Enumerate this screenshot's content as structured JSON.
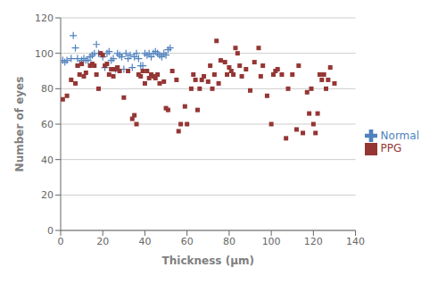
{
  "chart_data": {
    "type": "scatter",
    "xlabel": "Thickness (μm)",
    "ylabel": "Number of eyes",
    "xlim": [
      0,
      140
    ],
    "ylim": [
      0,
      120
    ],
    "xticks": [
      0,
      20,
      40,
      60,
      80,
      100,
      120,
      140
    ],
    "yticks": [
      0,
      20,
      40,
      60,
      80,
      100,
      120
    ],
    "grid": "y",
    "legend": "right",
    "series": [
      {
        "name": "Normal",
        "color": "#4F81BD",
        "marker": "plus",
        "x": [
          1,
          2,
          3,
          5,
          6,
          7,
          8,
          9,
          10,
          11,
          12,
          13,
          14,
          15,
          16,
          17,
          18,
          20,
          21,
          22,
          23,
          24,
          25,
          26,
          27,
          28,
          29,
          30,
          31,
          32,
          33,
          34,
          35,
          36,
          37,
          38,
          39,
          40,
          41,
          42,
          43,
          44,
          45,
          46,
          47,
          48,
          49,
          50,
          51,
          52
        ],
        "values": [
          96,
          95,
          96,
          97,
          110,
          103,
          97,
          94,
          96,
          97,
          96,
          96,
          98,
          99,
          100,
          105,
          100,
          98,
          92,
          100,
          101,
          96,
          97,
          91,
          100,
          99,
          98,
          91,
          100,
          97,
          99,
          92,
          98,
          100,
          97,
          93,
          93,
          100,
          99,
          100,
          98,
          100,
          101,
          100,
          99,
          98,
          100,
          99,
          102,
          103
        ]
      },
      {
        "name": "PPG",
        "color": "#943634",
        "marker": "square",
        "x": [
          1,
          3,
          5,
          7,
          8,
          9,
          10,
          11,
          12,
          14,
          15,
          16,
          17,
          18,
          19,
          20,
          21,
          22,
          23,
          24,
          25,
          26,
          27,
          28,
          30,
          32,
          34,
          35,
          36,
          37,
          38,
          39,
          40,
          41,
          42,
          43,
          44,
          45,
          46,
          47,
          49,
          50,
          51,
          53,
          55,
          56,
          57,
          59,
          60,
          62,
          63,
          64,
          65,
          66,
          67,
          68,
          70,
          71,
          72,
          73,
          74,
          75,
          76,
          78,
          79,
          80,
          81,
          82,
          83,
          84,
          85,
          86,
          88,
          90,
          92,
          94,
          95,
          96,
          98,
          100,
          101,
          102,
          103,
          105,
          107,
          108,
          110,
          112,
          113,
          115,
          117,
          118,
          119,
          120,
          121,
          122,
          123,
          124,
          125,
          126,
          127,
          128,
          130
        ],
        "values": [
          74,
          76,
          85,
          83,
          93,
          88,
          94,
          87,
          89,
          93,
          94,
          93,
          88,
          80,
          100,
          99,
          93,
          94,
          88,
          91,
          87,
          91,
          92,
          90,
          75,
          90,
          63,
          65,
          60,
          88,
          87,
          90,
          83,
          90,
          86,
          88,
          87,
          86,
          88,
          83,
          84,
          69,
          68,
          90,
          85,
          56,
          60,
          70,
          60,
          80,
          88,
          85,
          68,
          80,
          85,
          87,
          84,
          93,
          80,
          88,
          107,
          83,
          96,
          95,
          88,
          92,
          90,
          88,
          103,
          100,
          93,
          87,
          91,
          79,
          95,
          103,
          87,
          93,
          76,
          60,
          88,
          90,
          91,
          88,
          52,
          80,
          88,
          57,
          93,
          55,
          78,
          66,
          80,
          60,
          55,
          66,
          88,
          85,
          88,
          80,
          85,
          92,
          83
        ]
      }
    ]
  }
}
